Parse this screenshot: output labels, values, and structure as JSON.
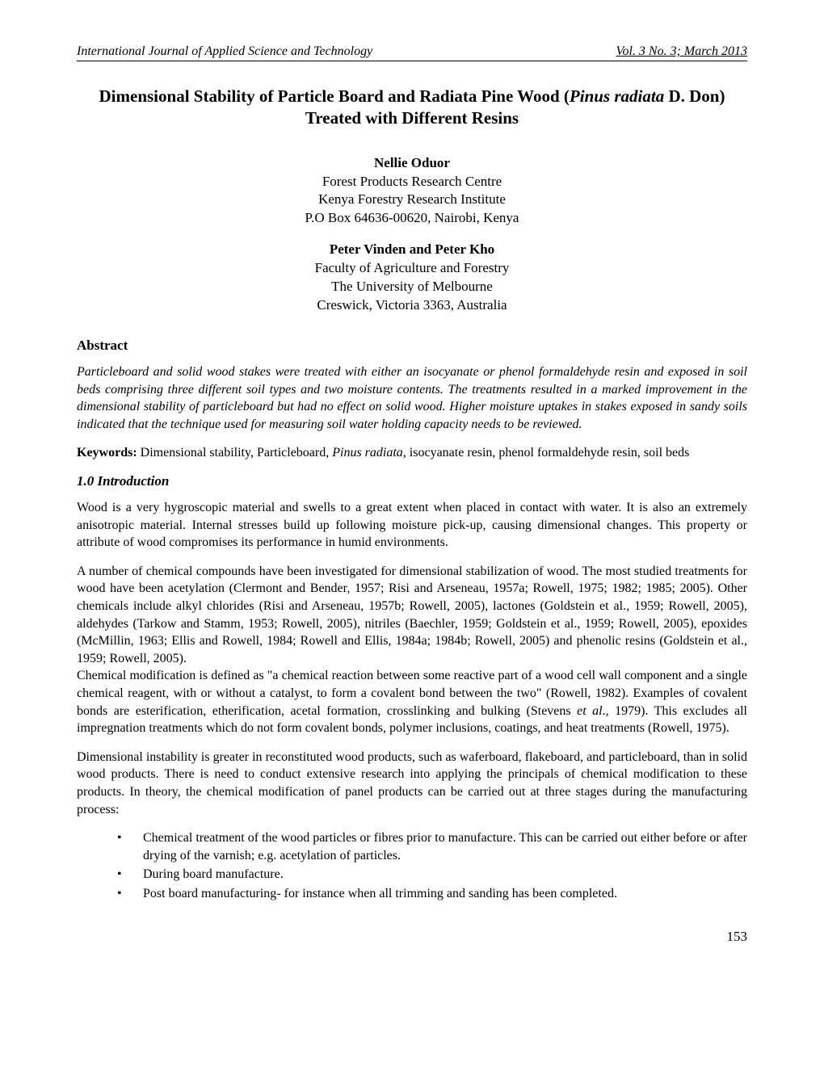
{
  "header": {
    "journal": "International Journal of Applied Science and Technology",
    "issue": "Vol. 3 No. 3; March 2013"
  },
  "title": {
    "part1": "Dimensional Stability of Particle Board and Radiata Pine Wood (",
    "species": "Pinus radiata",
    "part2": " D. Don) Treated with Different Resins"
  },
  "authors": {
    "block1": {
      "name": "Nellie Oduor",
      "line1": "Forest Products Research Centre",
      "line2": "Kenya Forestry Research Institute",
      "line3": "P.O Box 64636-00620, Nairobi, Kenya"
    },
    "block2": {
      "name": "Peter Vinden and Peter Kho",
      "line1": "Faculty of Agriculture and Forestry",
      "line2": "The University of Melbourne",
      "line3": "Creswick, Victoria 3363, Australia"
    }
  },
  "abstract": {
    "heading": "Abstract",
    "text": "Particleboard and solid wood stakes were treated with either an isocyanate or phenol formaldehyde resin and exposed in soil beds comprising three different soil types and two moisture contents. The treatments resulted in a marked improvement in the dimensional stability of particleboard but had no effect on solid wood. Higher moisture uptakes in stakes exposed in sandy soils indicated that the technique used for measuring soil water holding capacity needs to be reviewed."
  },
  "keywords": {
    "label": "Keywords:",
    "pre": " Dimensional stability, Particleboard, ",
    "italic": "Pinus radiata",
    "post": ", isocyanate resin, phenol formaldehyde resin, soil beds"
  },
  "intro": {
    "heading": "1.0 Introduction",
    "p1": "Wood is a very hygroscopic material and swells to a great extent when placed in contact with water. It is also an extremely anisotropic material. Internal stresses build up following moisture pick-up, causing dimensional changes. This property or attribute of wood compromises its performance in humid environments.",
    "p2": "A number of chemical compounds have been investigated for dimensional stabilization of wood. The most studied treatments for wood have been acetylation (Clermont and Bender, 1957; Risi and Arseneau, 1957a; Rowell, 1975; 1982; 1985; 2005). Other chemicals include alkyl chlorides (Risi and Arseneau, 1957b; Rowell, 2005), lactones (Goldstein et al., 1959; Rowell, 2005), aldehydes (Tarkow and Stamm, 1953; Rowell, 2005), nitriles (Baechler, 1959; Goldstein et al., 1959; Rowell, 2005), epoxides (McMillin, 1963; Ellis and Rowell, 1984; Rowell and Ellis, 1984a; 1984b; Rowell, 2005) and phenolic resins (Goldstein et al., 1959; Rowell, 2005).",
    "p3_pre": "Chemical modification is defined as \"a chemical reaction between some reactive part of a wood cell wall component and a single chemical reagent, with or without a catalyst, to form a covalent bond between the two\" (Rowell, 1982). Examples of covalent bonds are esterification, etherification, acetal formation, crosslinking and bulking (Stevens ",
    "p3_italic": "et al",
    "p3_post": "., 1979). This excludes all impregnation treatments which do not form covalent bonds, polymer inclusions, coatings, and heat treatments (Rowell, 1975).",
    "p4": "Dimensional instability is greater in reconstituted wood products, such as waferboard, flakeboard, and particleboard, than in solid wood products. There is need to conduct extensive research into applying the principals of chemical modification to these products. In theory, the chemical modification of panel products can be carried out at three stages during the manufacturing process:"
  },
  "bullets": {
    "b1": "Chemical treatment of the wood particles or fibres prior to manufacture. This can be carried out either before or after drying of the varnish; e.g. acetylation of particles.",
    "b2": "During board manufacture.",
    "b3": "Post board manufacturing- for instance when all trimming and sanding has been completed."
  },
  "pageNumber": "153"
}
